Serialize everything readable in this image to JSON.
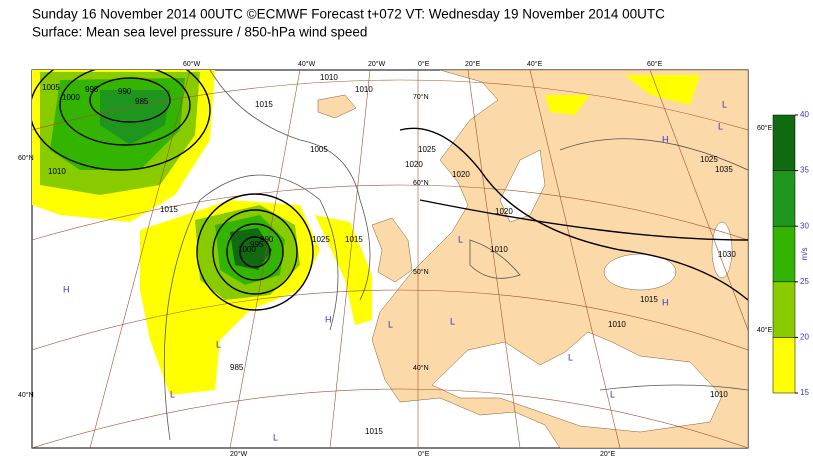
{
  "header": {
    "title": "Sunday 16 November 2014 00UTC ©ECMWF Forecast t+072 VT: Wednesday 19 November 2014 00UTC",
    "subtitle": "Surface: Mean sea level pressure / 850-hPa wind speed"
  },
  "colorbar": {
    "unit": "m/s",
    "ticks": [
      15,
      20,
      25,
      30,
      35,
      40
    ],
    "colors": [
      "#ffff00",
      "#88cc00",
      "#33b400",
      "#1e961e",
      "#106a10"
    ]
  },
  "graticule_labels": [
    "60°W",
    "40°W",
    "20°W",
    "0°E",
    "20°E",
    "40°E",
    "60°E",
    "60°N",
    "40°N",
    "20°W",
    "0°E",
    "20°E",
    "60°E",
    "40°E",
    "70°N",
    "60°N",
    "50°N",
    "40°N"
  ],
  "isobar_labels": [
    "1005",
    "1000",
    "995",
    "990",
    "985",
    "1010",
    "1015",
    "1010",
    "1015",
    "1010",
    "1005",
    "1015",
    "1020",
    "1025",
    "1010",
    "1020",
    "1025",
    "1035",
    "1030",
    "1025",
    "1000",
    "995",
    "990",
    "985",
    "1010",
    "1015",
    "1020",
    "1010",
    "1015"
  ],
  "pressure_centres": [
    "H",
    "L",
    "L",
    "H",
    "L",
    "L",
    "L",
    "H",
    "L",
    "L",
    "H",
    "L",
    "L",
    "L"
  ]
}
